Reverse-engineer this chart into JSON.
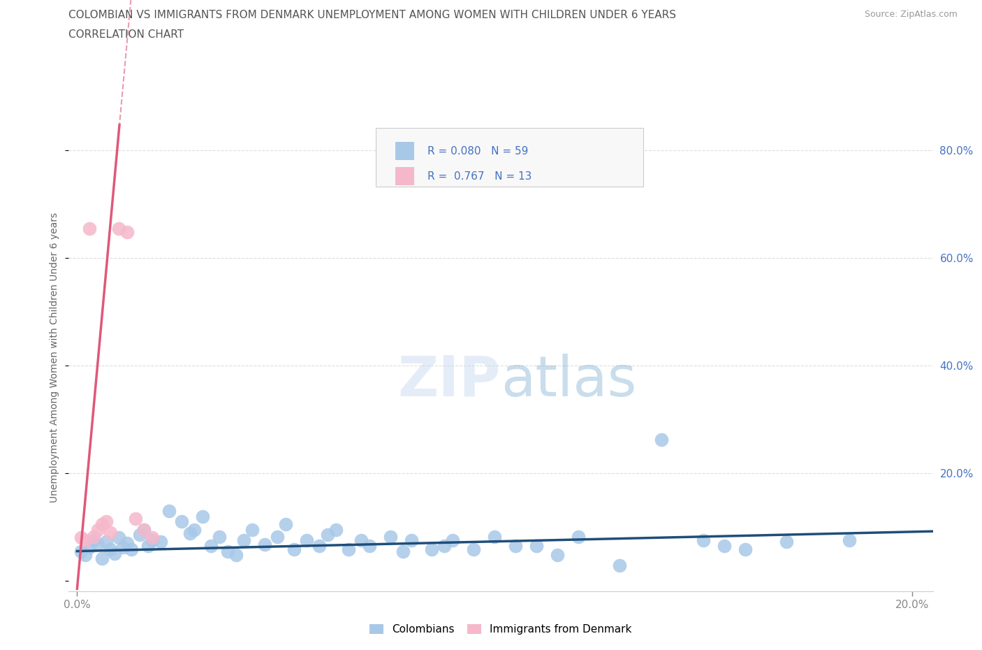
{
  "title_line1": "COLOMBIAN VS IMMIGRANTS FROM DENMARK UNEMPLOYMENT AMONG WOMEN WITH CHILDREN UNDER 6 YEARS",
  "title_line2": "CORRELATION CHART",
  "source": "Source: ZipAtlas.com",
  "ylabel": "Unemployment Among Women with Children Under 6 years",
  "xlim": [
    -0.002,
    0.205
  ],
  "ylim": [
    -0.02,
    0.85
  ],
  "xticks": [
    0.0,
    0.2
  ],
  "xtick_labels": [
    "0.0%",
    "20.0%"
  ],
  "yticks": [
    0.0,
    0.2,
    0.4,
    0.6,
    0.8
  ],
  "ytick_labels_right": [
    "",
    "20.0%",
    "40.0%",
    "60.0%",
    "80.0%"
  ],
  "title_color": "#555555",
  "axis_color": "#4472c4",
  "blue_R": 0.08,
  "blue_N": 59,
  "pink_R": 0.767,
  "pink_N": 13,
  "colombians_x": [
    0.001,
    0.002,
    0.003,
    0.004,
    0.005,
    0.006,
    0.007,
    0.008,
    0.009,
    0.01,
    0.011,
    0.012,
    0.013,
    0.015,
    0.016,
    0.017,
    0.018,
    0.02,
    0.022,
    0.025,
    0.027,
    0.028,
    0.03,
    0.032,
    0.034,
    0.036,
    0.038,
    0.04,
    0.042,
    0.045,
    0.048,
    0.05,
    0.052,
    0.055,
    0.058,
    0.06,
    0.062,
    0.065,
    0.068,
    0.07,
    0.075,
    0.078,
    0.08,
    0.085,
    0.088,
    0.09,
    0.095,
    0.1,
    0.105,
    0.11,
    0.115,
    0.12,
    0.13,
    0.14,
    0.15,
    0.155,
    0.16,
    0.17,
    0.185
  ],
  "colombians_y": [
    0.055,
    0.048,
    0.062,
    0.075,
    0.068,
    0.042,
    0.072,
    0.058,
    0.05,
    0.08,
    0.062,
    0.07,
    0.058,
    0.085,
    0.095,
    0.065,
    0.075,
    0.072,
    0.13,
    0.11,
    0.088,
    0.095,
    0.12,
    0.065,
    0.082,
    0.055,
    0.048,
    0.075,
    0.095,
    0.068,
    0.082,
    0.105,
    0.058,
    0.075,
    0.065,
    0.085,
    0.095,
    0.058,
    0.075,
    0.065,
    0.082,
    0.055,
    0.075,
    0.058,
    0.065,
    0.075,
    0.058,
    0.082,
    0.065,
    0.065,
    0.048,
    0.082,
    0.028,
    0.262,
    0.075,
    0.065,
    0.058,
    0.072,
    0.075
  ],
  "denmark_x": [
    0.001,
    0.002,
    0.003,
    0.004,
    0.005,
    0.006,
    0.007,
    0.008,
    0.01,
    0.012,
    0.014,
    0.016,
    0.018
  ],
  "denmark_y": [
    0.08,
    0.075,
    0.655,
    0.082,
    0.095,
    0.105,
    0.11,
    0.09,
    0.655,
    0.648,
    0.115,
    0.095,
    0.08
  ],
  "blue_color": "#a8c8e8",
  "pink_color": "#f5b8cb",
  "blue_line_color": "#1f4e79",
  "pink_line_color": "#e05878",
  "background_color": "#ffffff",
  "grid_color": "#dddddd",
  "pink_line_slope": 85.0,
  "pink_line_intercept": -0.015,
  "blue_line_slope": 0.18,
  "blue_line_intercept": 0.055
}
